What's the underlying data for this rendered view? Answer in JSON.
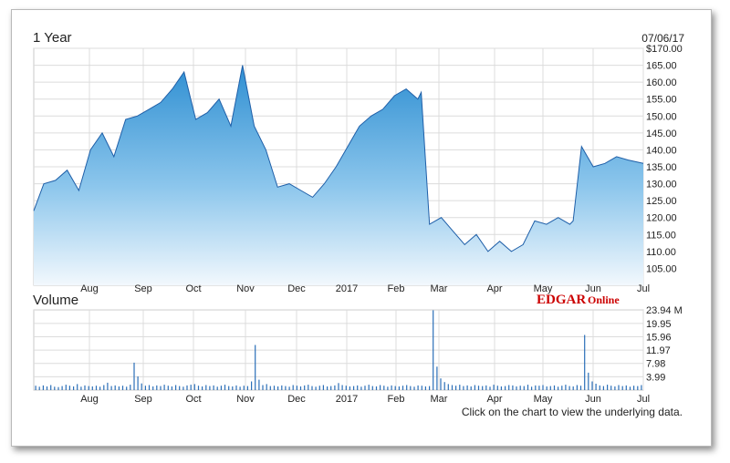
{
  "range_label": "1 Year",
  "date_label": "07/06/17",
  "volume_label": "Volume",
  "footer_text": "Click on the chart to view the underlying data.",
  "logo": {
    "part1": "EDGAR",
    "part2": "Online"
  },
  "colors": {
    "price_fill_top": "#2f8fd2",
    "price_fill_bottom": "#f2f8fd",
    "price_line": "#1f5fa8",
    "volume_bar": "#2b6fb8",
    "grid": "#dcdcdc",
    "logo_red": "#cc0000"
  },
  "chart_data": [
    {
      "type": "area",
      "title": "1 Year",
      "x_tick_labels": [
        "Aug",
        "Sep",
        "Oct",
        "Nov",
        "Dec",
        "2017",
        "Feb",
        "Mar",
        "Apr",
        "May",
        "Jun",
        "Jul"
      ],
      "y_tick_labels": [
        "$170.00",
        "165.00",
        "160.00",
        "155.00",
        "150.00",
        "145.00",
        "140.00",
        "135.00",
        "130.00",
        "125.00",
        "120.00",
        "115.00",
        "110.00",
        "105.00"
      ],
      "ylim": [
        100,
        170
      ],
      "dates": [
        "2016-07-06",
        "2016-07-12",
        "2016-07-19",
        "2016-07-26",
        "2016-08-02",
        "2016-08-09",
        "2016-08-16",
        "2016-08-23",
        "2016-08-30",
        "2016-09-06",
        "2016-09-13",
        "2016-09-20",
        "2016-09-27",
        "2016-10-04",
        "2016-10-11",
        "2016-10-18",
        "2016-10-25",
        "2016-11-01",
        "2016-11-08",
        "2016-11-15",
        "2016-11-22",
        "2016-11-29",
        "2016-12-06",
        "2016-12-13",
        "2016-12-20",
        "2016-12-27",
        "2017-01-03",
        "2017-01-10",
        "2017-01-17",
        "2017-01-24",
        "2017-01-31",
        "2017-02-07",
        "2017-02-14",
        "2017-02-21",
        "2017-02-23",
        "2017-02-28",
        "2017-03-07",
        "2017-03-14",
        "2017-03-21",
        "2017-03-28",
        "2017-04-04",
        "2017-04-11",
        "2017-04-18",
        "2017-04-25",
        "2017-05-02",
        "2017-05-09",
        "2017-05-16",
        "2017-05-23",
        "2017-05-25",
        "2017-05-30",
        "2017-06-06",
        "2017-06-13",
        "2017-06-20",
        "2017-06-27",
        "2017-07-06"
      ],
      "series": [
        {
          "values": [
            122,
            130,
            131,
            134,
            128,
            140,
            145,
            138,
            149,
            150,
            152,
            154,
            158,
            163,
            149,
            151,
            155,
            147,
            165,
            147,
            140,
            129,
            130,
            128,
            126,
            130,
            135,
            141,
            147,
            150,
            152,
            156,
            158,
            155,
            157,
            118,
            120,
            116,
            112,
            115,
            110,
            113,
            110,
            112,
            119,
            118,
            120,
            118,
            119,
            141,
            135,
            136,
            138,
            137,
            136
          ]
        }
      ]
    },
    {
      "type": "bar",
      "title": "Volume",
      "x_tick_labels": [
        "Aug",
        "Sep",
        "Oct",
        "Nov",
        "Dec",
        "2017",
        "Feb",
        "Mar",
        "Apr",
        "May",
        "Jun",
        "Jul"
      ],
      "y_tick_labels": [
        "23.94 M",
        "19.95",
        "15.96",
        "11.97",
        "7.98",
        "3.99"
      ],
      "ylim": [
        0,
        24
      ],
      "series": [
        {
          "values": [
            1.3,
            1.0,
            1.4,
            1.1,
            1.5,
            1.0,
            0.9,
            1.2,
            1.6,
            1.3,
            1.1,
            1.8,
            1.0,
            1.4,
            1.2,
            1.1,
            1.3,
            1.0,
            1.5,
            2.2,
            1.2,
            1.4,
            1.1,
            1.3,
            1.0,
            1.6,
            8.2,
            4.1,
            2.0,
            1.3,
            1.5,
            1.1,
            1.4,
            1.2,
            1.6,
            1.3,
            1.1,
            1.5,
            1.2,
            1.0,
            1.4,
            1.6,
            1.8,
            1.3,
            1.1,
            1.5,
            1.2,
            1.4,
            1.0,
            1.3,
            1.6,
            1.2,
            1.1,
            1.4,
            1.0,
            1.3,
            1.2,
            2.6,
            13.5,
            3.1,
            1.5,
            1.8,
            1.2,
            1.3,
            1.1,
            1.4,
            1.2,
            1.0,
            1.5,
            1.3,
            1.1,
            1.4,
            1.6,
            1.2,
            1.0,
            1.3,
            1.5,
            1.1,
            1.2,
            1.4,
            2.1,
            1.5,
            1.3,
            1.1,
            1.2,
            1.4,
            1.0,
            1.3,
            1.6,
            1.2,
            1.1,
            1.5,
            1.3,
            1.0,
            1.4,
            1.2,
            1.1,
            1.3,
            1.5,
            1.2,
            1.0,
            1.4,
            1.3,
            1.1,
            1.2,
            23.9,
            7.0,
            3.5,
            2.4,
            1.8,
            1.5,
            1.3,
            1.6,
            1.2,
            1.4,
            1.1,
            1.5,
            1.3,
            1.2,
            1.4,
            1.0,
            1.6,
            1.3,
            1.1,
            1.2,
            1.5,
            1.4,
            1.1,
            1.3,
            1.2,
            1.6,
            1.0,
            1.4,
            1.3,
            1.5,
            1.1,
            1.2,
            1.4,
            1.0,
            1.3,
            1.6,
            1.2,
            1.1,
            1.5,
            1.3,
            16.5,
            5.2,
            2.6,
            1.9,
            1.4,
            1.2,
            1.6,
            1.3,
            1.1,
            1.5,
            1.2,
            1.4,
            1.0,
            1.3,
            1.2,
            1.5
          ]
        }
      ]
    }
  ]
}
